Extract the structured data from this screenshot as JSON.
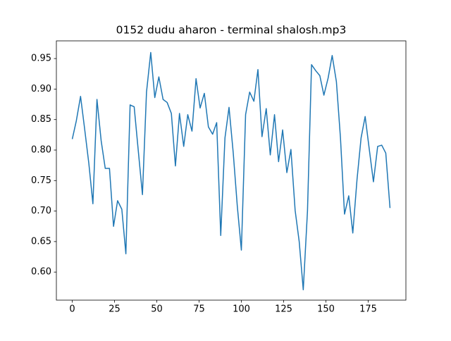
{
  "chart_data": {
    "type": "line",
    "title": "0152 dudu aharon - terminal shalosh.mp3",
    "x": [
      0,
      2.4,
      4.9,
      7.3,
      9.8,
      12.2,
      14.6,
      17.1,
      19.5,
      22,
      24.4,
      26.8,
      29.3,
      31.7,
      34.2,
      36.6,
      39,
      41.5,
      43.9,
      46.4,
      48.8,
      51.2,
      53.7,
      56.1,
      58.6,
      61,
      63.4,
      65.9,
      68.3,
      70.8,
      73.2,
      75.6,
      78.1,
      80.5,
      83,
      85.4,
      87.8,
      90.3,
      92.7,
      95.2,
      97.6,
      100,
      102.5,
      104.9,
      107.4,
      109.8,
      112.2,
      114.7,
      117.1,
      119.6,
      122,
      124.4,
      126.9,
      129.3,
      131.8,
      134.2,
      136.6,
      139.1,
      141.5,
      144,
      146.4,
      148.8,
      151.3,
      153.7,
      156.2,
      158.6,
      161,
      163.5,
      165.9,
      168.4,
      170.8,
      173.2,
      175.7,
      178.1,
      180.6,
      183,
      185.4,
      187.9
    ],
    "series": [
      {
        "color": "#1f77b4",
        "values": [
          0.818,
          0.848,
          0.888,
          0.835,
          0.778,
          0.712,
          0.883,
          0.815,
          0.77,
          0.77,
          0.675,
          0.717,
          0.703,
          0.63,
          0.874,
          0.871,
          0.8,
          0.727,
          0.895,
          0.96,
          0.886,
          0.92,
          0.883,
          0.878,
          0.86,
          0.774,
          0.86,
          0.806,
          0.858,
          0.831,
          0.917,
          0.869,
          0.893,
          0.838,
          0.826,
          0.845,
          0.66,
          0.82,
          0.87,
          0.795,
          0.708,
          0.636,
          0.858,
          0.895,
          0.88,
          0.932,
          0.822,
          0.868,
          0.792,
          0.858,
          0.781,
          0.833,
          0.763,
          0.801,
          0.701,
          0.65,
          0.571,
          0.7,
          0.94,
          0.93,
          0.922,
          0.89,
          0.918,
          0.955,
          0.912,
          0.82,
          0.695,
          0.725,
          0.664,
          0.752,
          0.82,
          0.855,
          0.8,
          0.748,
          0.806,
          0.808,
          0.795,
          0.705
        ]
      }
    ],
    "xlim": [
      -9.4,
      197.3
    ],
    "ylim": [
      0.554,
      0.979
    ],
    "xticks": [
      0,
      25,
      50,
      75,
      100,
      125,
      150,
      175
    ],
    "yticks": [
      {
        "value": 0.6,
        "label": "0.60"
      },
      0.65,
      {
        "value": 0.7,
        "label": "0.70"
      },
      0.75,
      {
        "value": 0.8,
        "label": "0.80"
      },
      0.85,
      {
        "value": 0.9,
        "label": "0.90"
      },
      0.95
    ]
  }
}
